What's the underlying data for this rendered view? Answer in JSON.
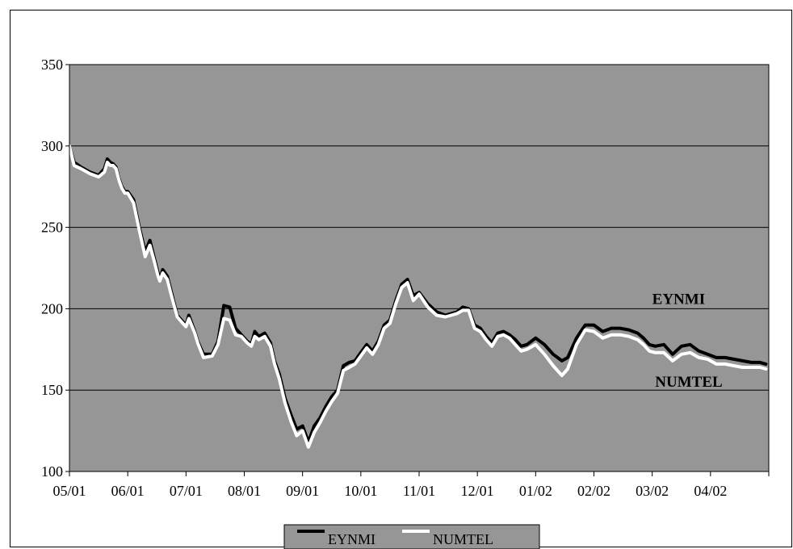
{
  "chart_data": {
    "type": "line",
    "title": "",
    "xlabel": "",
    "ylabel": "",
    "ylim": [
      100,
      350
    ],
    "y_ticks": [
      100,
      150,
      200,
      250,
      300,
      350
    ],
    "x_tick_labels": [
      "05/01",
      "06/01",
      "07/01",
      "08/01",
      "09/01",
      "10/01",
      "11/01",
      "12/01",
      "01/02",
      "02/02",
      "03/02",
      "04/02"
    ],
    "x_range_months": [
      0,
      12
    ],
    "grid": "horizontal",
    "plot_background": "#969696",
    "legend_position": "bottom-center",
    "annotations": [
      {
        "text": "EYNMI",
        "series": "EYNMI"
      },
      {
        "text": "NUMTEL",
        "series": "NUMTEL"
      }
    ],
    "series": [
      {
        "name": "EYNMI",
        "color": "#000000",
        "x": [
          0.0,
          0.08,
          0.2,
          0.35,
          0.5,
          0.6,
          0.65,
          0.7,
          0.75,
          0.8,
          0.85,
          0.9,
          0.95,
          1.0,
          1.1,
          1.2,
          1.3,
          1.38,
          1.45,
          1.52,
          1.55,
          1.6,
          1.68,
          1.75,
          1.85,
          1.92,
          2.0,
          2.05,
          2.15,
          2.2,
          2.3,
          2.45,
          2.55,
          2.65,
          2.75,
          2.85,
          2.95,
          3.0,
          3.05,
          3.12,
          3.18,
          3.25,
          3.35,
          3.45,
          3.52,
          3.6,
          3.7,
          3.8,
          3.9,
          4.0,
          4.1,
          4.2,
          4.3,
          4.4,
          4.5,
          4.6,
          4.7,
          4.8,
          4.9,
          5.0,
          5.1,
          5.2,
          5.3,
          5.4,
          5.5,
          5.6,
          5.7,
          5.8,
          5.9,
          6.0,
          6.15,
          6.3,
          6.45,
          6.55,
          6.65,
          6.75,
          6.85,
          6.95,
          7.05,
          7.15,
          7.25,
          7.35,
          7.45,
          7.55,
          7.65,
          7.75,
          7.85,
          8.0,
          8.15,
          8.3,
          8.45,
          8.55,
          8.7,
          8.85,
          9.0,
          9.15,
          9.3,
          9.45,
          9.6,
          9.75,
          9.85,
          9.95,
          10.05,
          10.2,
          10.35,
          10.5,
          10.65,
          10.8,
          10.95,
          11.1,
          11.25,
          11.4,
          11.55,
          11.7,
          11.85,
          11.95
        ],
        "values": [
          300,
          290,
          287,
          284,
          282,
          286,
          292,
          290,
          289,
          287,
          280,
          275,
          272,
          272,
          267,
          250,
          235,
          242,
          232,
          222,
          218,
          224,
          220,
          210,
          196,
          193,
          190,
          196,
          186,
          180,
          172,
          172,
          180,
          202,
          201,
          188,
          184,
          182,
          180,
          178,
          186,
          183,
          185,
          179,
          168,
          160,
          145,
          135,
          126,
          128,
          118,
          128,
          133,
          140,
          146,
          150,
          165,
          167,
          168,
          173,
          178,
          174,
          180,
          190,
          193,
          205,
          215,
          218,
          208,
          210,
          203,
          198,
          196,
          197,
          198,
          201,
          200,
          190,
          188,
          183,
          179,
          185,
          186,
          184,
          181,
          177,
          178,
          182,
          178,
          172,
          168,
          170,
          182,
          190,
          190,
          186,
          188,
          188,
          187,
          185,
          182,
          178,
          177,
          178,
          172,
          177,
          178,
          174,
          172,
          170,
          170,
          169,
          168,
          167,
          167,
          166
        ]
      },
      {
        "name": "NUMTEL",
        "color": "#ffffff",
        "x": [
          0.0,
          0.08,
          0.2,
          0.35,
          0.5,
          0.6,
          0.65,
          0.7,
          0.75,
          0.8,
          0.85,
          0.9,
          0.95,
          1.0,
          1.1,
          1.2,
          1.3,
          1.38,
          1.45,
          1.52,
          1.55,
          1.6,
          1.68,
          1.75,
          1.85,
          1.92,
          2.0,
          2.05,
          2.15,
          2.2,
          2.3,
          2.45,
          2.55,
          2.65,
          2.75,
          2.85,
          2.95,
          3.0,
          3.05,
          3.12,
          3.18,
          3.25,
          3.35,
          3.45,
          3.52,
          3.6,
          3.7,
          3.8,
          3.9,
          4.0,
          4.1,
          4.2,
          4.3,
          4.4,
          4.5,
          4.6,
          4.7,
          4.8,
          4.9,
          5.0,
          5.1,
          5.2,
          5.3,
          5.4,
          5.5,
          5.6,
          5.7,
          5.8,
          5.9,
          6.0,
          6.15,
          6.3,
          6.45,
          6.55,
          6.65,
          6.75,
          6.85,
          6.95,
          7.05,
          7.15,
          7.25,
          7.35,
          7.45,
          7.55,
          7.65,
          7.75,
          7.85,
          8.0,
          8.15,
          8.3,
          8.45,
          8.55,
          8.7,
          8.85,
          9.0,
          9.15,
          9.3,
          9.45,
          9.6,
          9.75,
          9.85,
          9.95,
          10.05,
          10.2,
          10.35,
          10.5,
          10.65,
          10.8,
          10.95,
          11.1,
          11.25,
          11.4,
          11.55,
          11.7,
          11.85,
          11.95
        ],
        "values": [
          300,
          288,
          286,
          283,
          281,
          284,
          290,
          288,
          288,
          286,
          279,
          274,
          271,
          271,
          265,
          248,
          232,
          239,
          230,
          220,
          217,
          222,
          218,
          208,
          195,
          192,
          189,
          194,
          185,
          179,
          170,
          171,
          178,
          194,
          193,
          184,
          183,
          181,
          179,
          177,
          183,
          181,
          183,
          177,
          166,
          157,
          142,
          131,
          122,
          125,
          115,
          124,
          130,
          137,
          143,
          148,
          162,
          164,
          166,
          171,
          176,
          172,
          178,
          188,
          191,
          203,
          213,
          216,
          205,
          209,
          201,
          196,
          195,
          196,
          197,
          199,
          199,
          188,
          186,
          181,
          177,
          183,
          184,
          182,
          178,
          174,
          175,
          178,
          172,
          165,
          159,
          163,
          178,
          187,
          186,
          182,
          184,
          184,
          183,
          181,
          178,
          174,
          173,
          173,
          168,
          172,
          173,
          170,
          169,
          166,
          166,
          165,
          164,
          164,
          164,
          163
        ]
      }
    ]
  }
}
